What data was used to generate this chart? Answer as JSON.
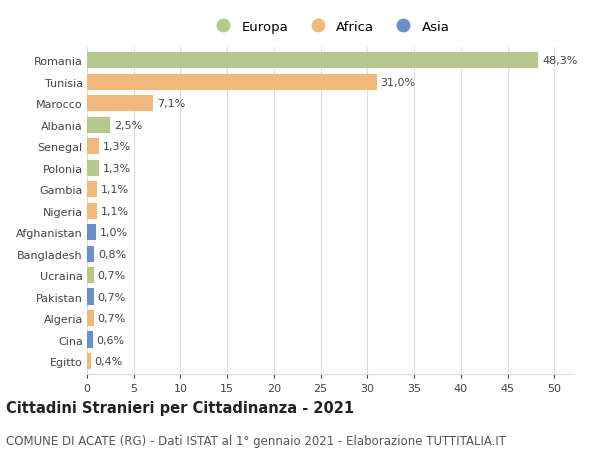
{
  "countries": [
    "Romania",
    "Tunisia",
    "Marocco",
    "Albania",
    "Senegal",
    "Polonia",
    "Gambia",
    "Nigeria",
    "Afghanistan",
    "Bangladesh",
    "Ucraina",
    "Pakistan",
    "Algeria",
    "Cina",
    "Egitto"
  ],
  "values": [
    48.3,
    31.0,
    7.1,
    2.5,
    1.3,
    1.3,
    1.1,
    1.1,
    1.0,
    0.8,
    0.7,
    0.7,
    0.7,
    0.6,
    0.4
  ],
  "labels": [
    "48,3%",
    "31,0%",
    "7,1%",
    "2,5%",
    "1,3%",
    "1,3%",
    "1,1%",
    "1,1%",
    "1,0%",
    "0,8%",
    "0,7%",
    "0,7%",
    "0,7%",
    "0,6%",
    "0,4%"
  ],
  "continents": [
    "Europa",
    "Africa",
    "Africa",
    "Europa",
    "Africa",
    "Europa",
    "Africa",
    "Africa",
    "Asia",
    "Asia",
    "Europa",
    "Asia",
    "Africa",
    "Asia",
    "Africa"
  ],
  "colors": {
    "Europa": "#b5c98e",
    "Africa": "#f0b87b",
    "Asia": "#6b8fc9"
  },
  "legend_order": [
    "Europa",
    "Africa",
    "Asia"
  ],
  "title": "Cittadini Stranieri per Cittadinanza - 2021",
  "subtitle": "COMUNE DI ACATE (RG) - Dati ISTAT al 1° gennaio 2021 - Elaborazione TUTTITALIA.IT",
  "xlim": [
    0,
    52
  ],
  "xticks": [
    0,
    5,
    10,
    15,
    20,
    25,
    30,
    35,
    40,
    45,
    50
  ],
  "background_color": "#ffffff",
  "grid_color": "#dddddd",
  "bar_height": 0.75,
  "title_fontsize": 10.5,
  "subtitle_fontsize": 8.5,
  "label_fontsize": 8,
  "tick_fontsize": 8,
  "legend_fontsize": 9.5
}
